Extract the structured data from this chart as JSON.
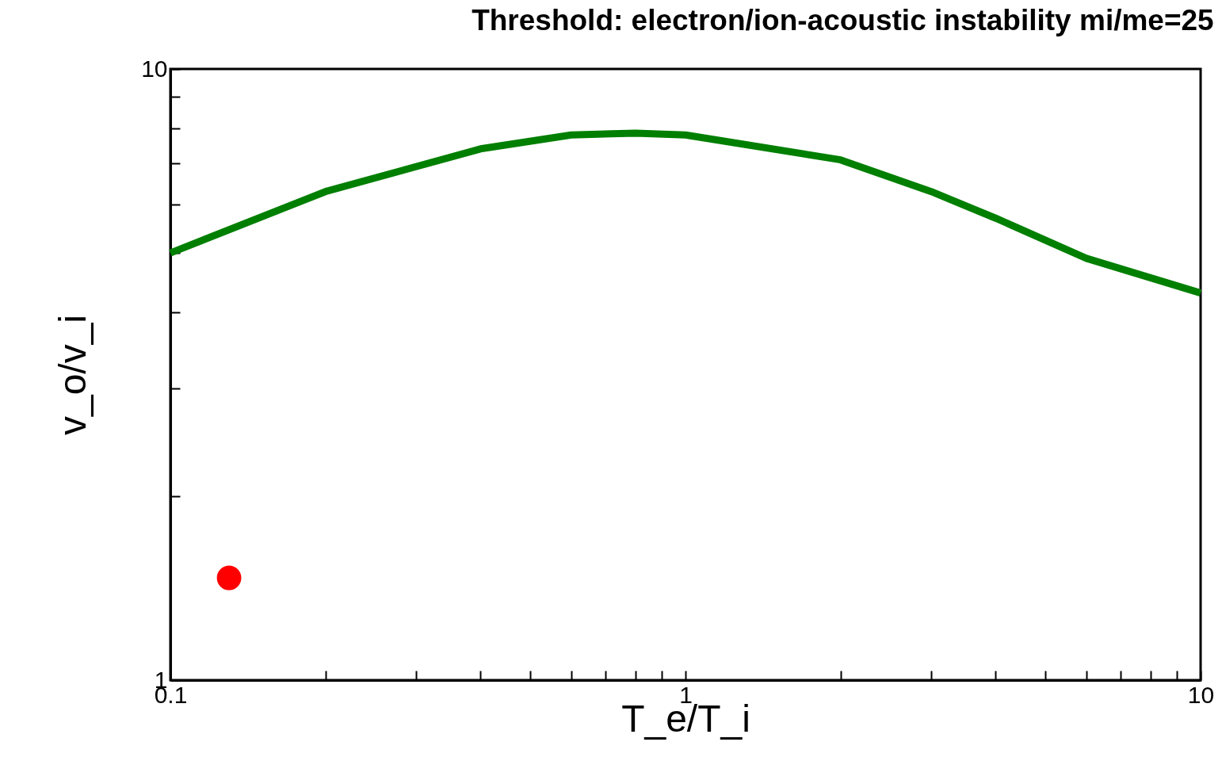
{
  "chart_data": {
    "type": "line",
    "title": "Threshold: electron/ion-acoustic instability  mi/me=25",
    "xlabel": "T_e/T_i",
    "ylabel": "v_o/v_i",
    "log": "xy",
    "grid": false,
    "legend": false,
    "xlim": [
      0.1,
      10
    ],
    "ylim": [
      1,
      10
    ],
    "xticks": [
      {
        "value": 0.1,
        "label": "0.1"
      },
      {
        "value": 0.2,
        "label": null
      },
      {
        "value": 0.3,
        "label": null
      },
      {
        "value": 0.4,
        "label": null
      },
      {
        "value": 0.5,
        "label": null
      },
      {
        "value": 0.6,
        "label": null
      },
      {
        "value": 0.7,
        "label": null
      },
      {
        "value": 0.8,
        "label": null
      },
      {
        "value": 0.9,
        "label": null
      },
      {
        "value": 1,
        "label": "1"
      },
      {
        "value": 2,
        "label": null
      },
      {
        "value": 3,
        "label": null
      },
      {
        "value": 4,
        "label": null
      },
      {
        "value": 5,
        "label": null
      },
      {
        "value": 6,
        "label": null
      },
      {
        "value": 7,
        "label": null
      },
      {
        "value": 8,
        "label": null
      },
      {
        "value": 9,
        "label": null
      },
      {
        "value": 10,
        "label": "10"
      }
    ],
    "yticks": [
      {
        "value": 1,
        "label": "1"
      },
      {
        "value": 2,
        "label": null
      },
      {
        "value": 3,
        "label": null
      },
      {
        "value": 4,
        "label": null
      },
      {
        "value": 5,
        "label": null
      },
      {
        "value": 6,
        "label": null
      },
      {
        "value": 7,
        "label": null
      },
      {
        "value": 8,
        "label": null
      },
      {
        "value": 9,
        "label": null
      },
      {
        "value": 10,
        "label": "10"
      }
    ],
    "series": [
      {
        "type": "line",
        "color": "#007f00",
        "marker": "none",
        "line_style": "solid",
        "x": [
          0.1,
          0.2,
          0.4,
          0.6,
          0.8,
          1,
          2,
          3,
          4,
          6,
          10
        ],
        "values": [
          5.0,
          6.3,
          7.4,
          7.8,
          7.85,
          7.8,
          7.1,
          6.3,
          5.7,
          4.9,
          4.3
        ]
      },
      {
        "type": "scatter",
        "color": "#ff0000",
        "marker": "circle",
        "x": [
          0.13
        ],
        "values": [
          1.47
        ]
      }
    ]
  }
}
